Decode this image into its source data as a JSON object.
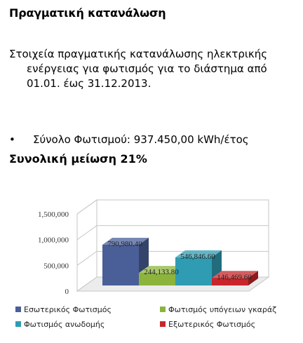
{
  "heading": "Πραγματική κατανάλωση",
  "paragraph": {
    "line1": "Στοιχεία πραγματικής κατανάλωσης ηλεκτρικής",
    "line2": "ενέργειας για φωτισμός για το διάστημα από",
    "line3": "01.01. έως 31.12.2013."
  },
  "bullet": {
    "symbol": "•",
    "text": "Σύνολο Φωτισμού: 937.450,00 kWh/έτος"
  },
  "reduction": "Συνολική μείωση 21%",
  "chart_data": {
    "type": "bar",
    "three_d": true,
    "title": "",
    "xlabel": "",
    "ylabel": "",
    "ylim": [
      0,
      1500000
    ],
    "y_ticks": [
      "0",
      "500,000",
      "1,000,000",
      "1,500,000"
    ],
    "y_tick_values": [
      0,
      500000,
      1000000,
      1500000
    ],
    "grid": true,
    "legend_position": "bottom",
    "series": [
      {
        "name": "Εσωτερικός Φωτισμός",
        "value": 790980.4,
        "label": "790,980.40",
        "color": "#4a5f98"
      },
      {
        "name": "Φωτισμός υπόγειων γκαράζ",
        "value": 244133.8,
        "label": "244,133.80",
        "color": "#8cb43c"
      },
      {
        "name": "Φωτισμός ανωδομής",
        "value": 546846.6,
        "label": "546,846.60",
        "color": "#2f9cb3"
      },
      {
        "name": "Εξωτερικός Φωτισμός",
        "value": 146469.6,
        "label": "146,469.60",
        "color": "#c8262b"
      }
    ]
  }
}
